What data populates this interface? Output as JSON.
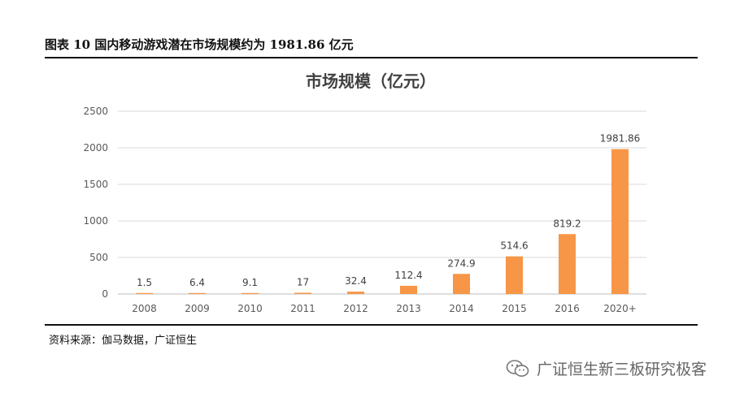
{
  "figure": {
    "caption": "图表 10 国内移动游戏潜在市场规模约为 1981.86 亿元",
    "source": "资料来源：伽马数据，广证恒生",
    "watermark": "广证恒生新三板研究极客"
  },
  "colors": {
    "bar": "#F79646",
    "grid": "#D9D9D9",
    "axis": "#BFBFBF",
    "label": "#404040",
    "tick": "#595959"
  },
  "chart_data": {
    "type": "bar",
    "title": "市场规模（亿元）",
    "categories": [
      "2008",
      "2009",
      "2010",
      "2011",
      "2012",
      "2013",
      "2014",
      "2015",
      "2016",
      "2020+"
    ],
    "values": [
      1.5,
      6.4,
      9.1,
      17,
      32.4,
      112.4,
      274.9,
      514.6,
      819.2,
      1981.86
    ],
    "value_labels": [
      "1.5",
      "6.4",
      "9.1",
      "17",
      "32.4",
      "112.4",
      "274.9",
      "514.6",
      "819.2",
      "1981.86"
    ],
    "ylim": [
      0,
      2500
    ],
    "yticks": [
      0,
      500,
      1000,
      1500,
      2000,
      2500
    ],
    "xlabel": "",
    "ylabel": "",
    "grid": true,
    "legend": "none"
  }
}
